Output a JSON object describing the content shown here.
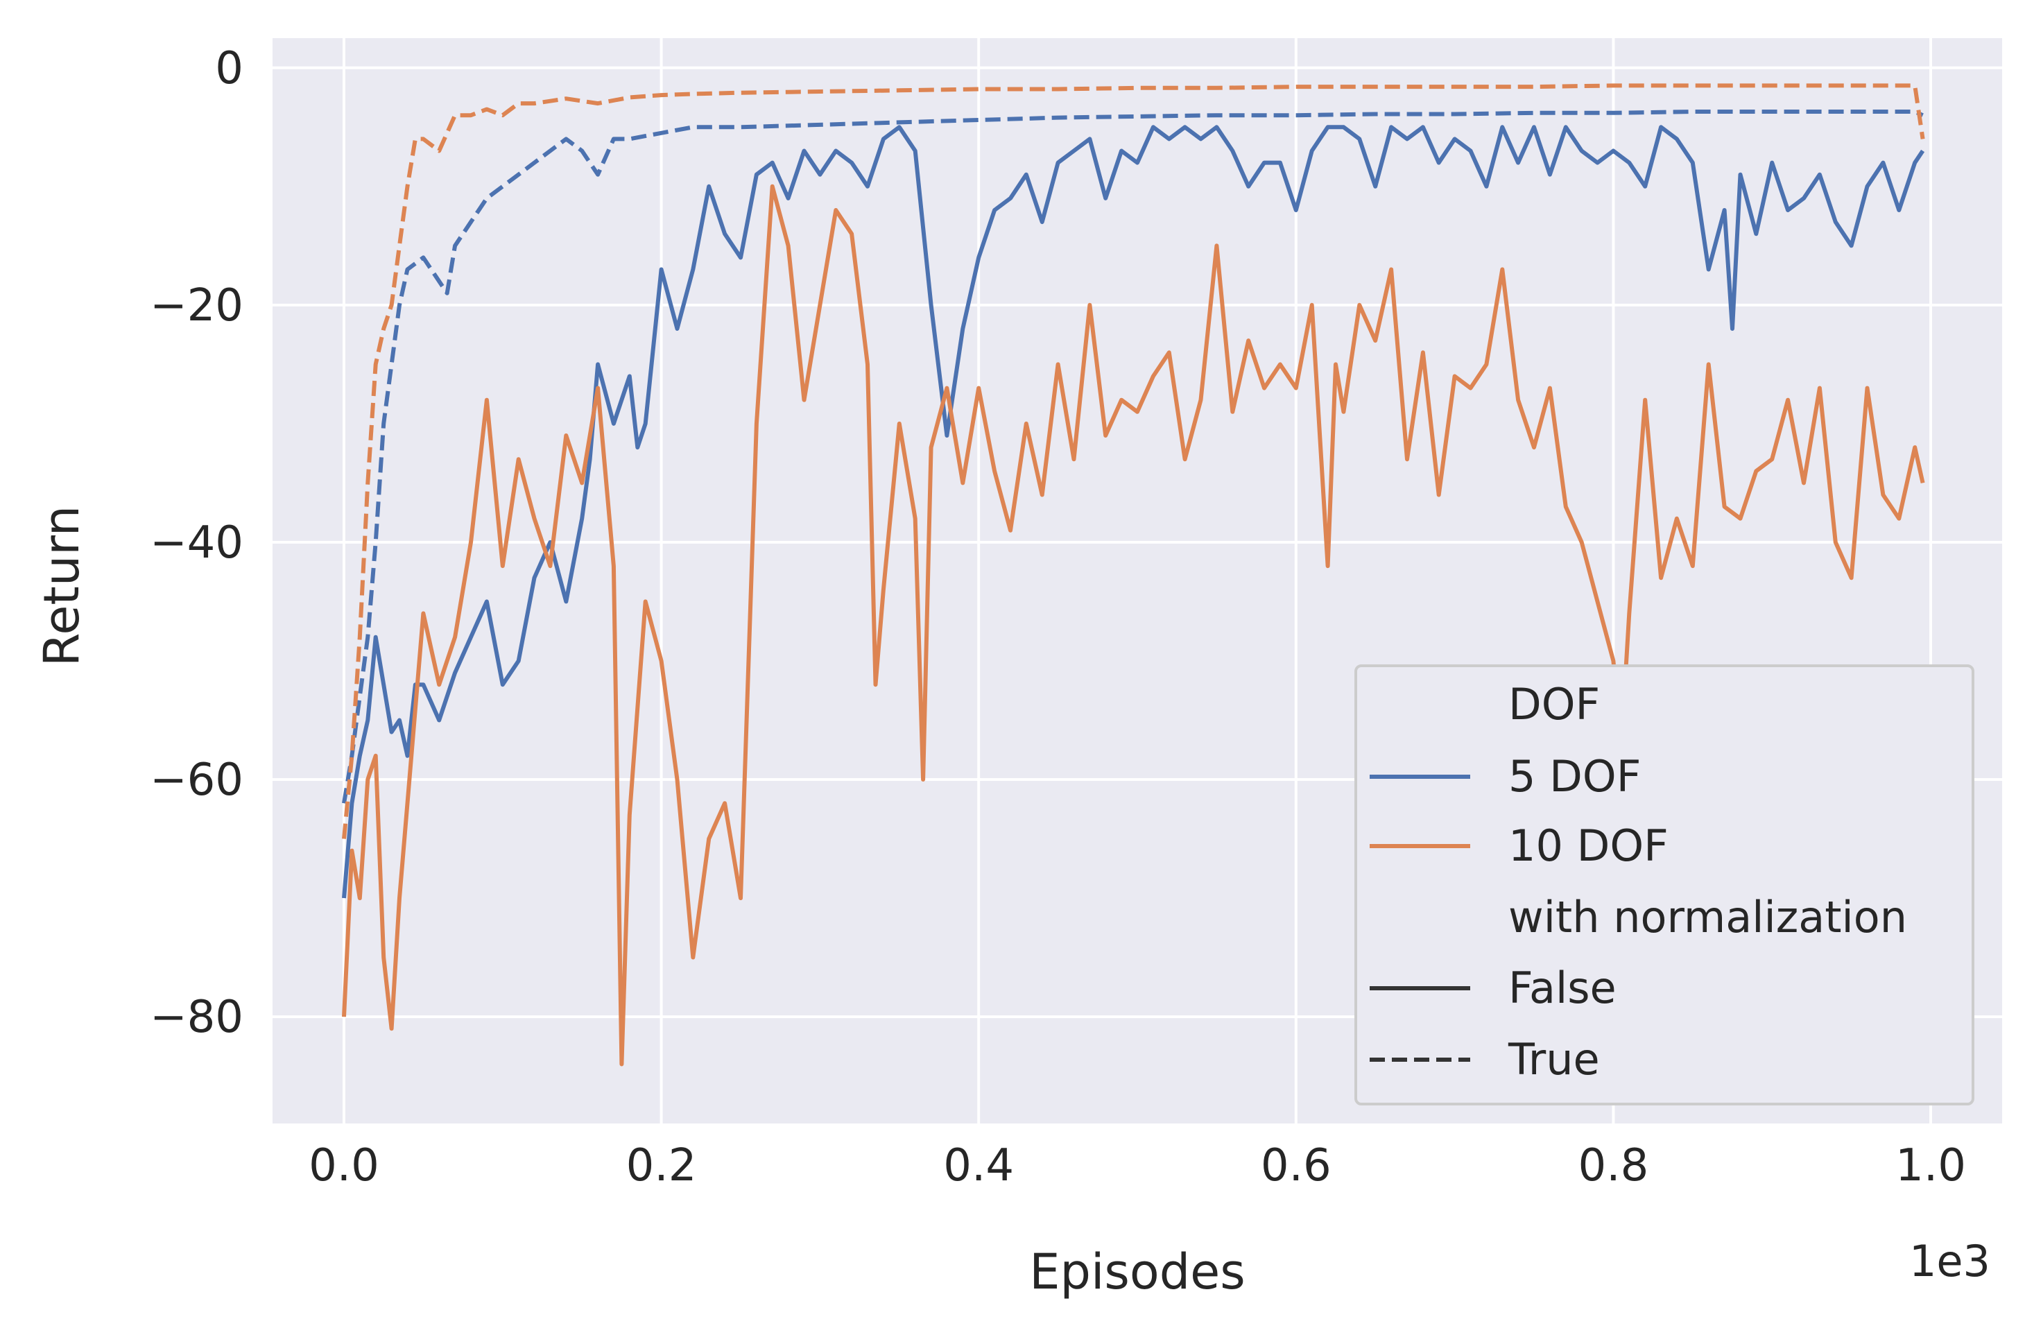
{
  "chart_data": {
    "type": "line",
    "xlabel": "Episodes",
    "ylabel": "Return",
    "x_offset_text": "1e3",
    "xlim": [
      -0.045,
      1.045
    ],
    "ylim": [
      -89,
      2.5
    ],
    "grid": true,
    "x_ticks": [
      0.0,
      0.2,
      0.4,
      0.6,
      0.8,
      1.0
    ],
    "x_tick_labels": [
      "0.0",
      "0.2",
      "0.4",
      "0.6",
      "0.8",
      "1.0"
    ],
    "y_ticks": [
      0,
      -20,
      -40,
      -60,
      -80
    ],
    "y_tick_labels": [
      "0",
      "−20",
      "−40",
      "−60",
      "−80"
    ],
    "legend": {
      "position": "lower-right",
      "hue_title": "DOF",
      "hue_entries": [
        {
          "label": "5 DOF",
          "color": "#4c72b0"
        },
        {
          "label": "10 DOF",
          "color": "#dd8452"
        }
      ],
      "style_title": "with normalization",
      "style_entries": [
        {
          "label": "False",
          "dash": "solid"
        },
        {
          "label": "True",
          "dash": "dashed"
        }
      ]
    },
    "series": [
      {
        "name": "5 DOF, False",
        "color": "#4c72b0",
        "dash": "solid",
        "x": [
          0,
          0.005,
          0.01,
          0.015,
          0.02,
          0.025,
          0.03,
          0.035,
          0.04,
          0.045,
          0.05,
          0.06,
          0.07,
          0.08,
          0.09,
          0.1,
          0.11,
          0.12,
          0.13,
          0.14,
          0.15,
          0.155,
          0.16,
          0.17,
          0.18,
          0.185,
          0.19,
          0.2,
          0.21,
          0.22,
          0.23,
          0.24,
          0.25,
          0.26,
          0.27,
          0.28,
          0.29,
          0.3,
          0.31,
          0.32,
          0.33,
          0.34,
          0.35,
          0.36,
          0.37,
          0.38,
          0.39,
          0.4,
          0.41,
          0.42,
          0.43,
          0.44,
          0.45,
          0.46,
          0.47,
          0.48,
          0.49,
          0.5,
          0.51,
          0.52,
          0.53,
          0.54,
          0.55,
          0.56,
          0.57,
          0.58,
          0.59,
          0.6,
          0.61,
          0.62,
          0.63,
          0.64,
          0.65,
          0.66,
          0.67,
          0.68,
          0.69,
          0.7,
          0.71,
          0.72,
          0.73,
          0.74,
          0.75,
          0.76,
          0.77,
          0.78,
          0.79,
          0.8,
          0.81,
          0.82,
          0.83,
          0.84,
          0.85,
          0.86,
          0.87,
          0.875,
          0.88,
          0.89,
          0.9,
          0.91,
          0.92,
          0.93,
          0.94,
          0.95,
          0.96,
          0.97,
          0.98,
          0.99,
          0.995
        ],
        "y": [
          -70,
          -62,
          -58,
          -55,
          -48,
          -52,
          -56,
          -55,
          -58,
          -52,
          -52,
          -55,
          -51,
          -48,
          -45,
          -52,
          -50,
          -43,
          -40,
          -45,
          -38,
          -33,
          -25,
          -30,
          -26,
          -32,
          -30,
          -17,
          -22,
          -17,
          -10,
          -14,
          -16,
          -9,
          -8,
          -11,
          -7,
          -9,
          -7,
          -8,
          -10,
          -6,
          -5,
          -7,
          -20,
          -31,
          -22,
          -16,
          -12,
          -11,
          -9,
          -13,
          -8,
          -7,
          -6,
          -11,
          -7,
          -8,
          -5,
          -6,
          -5,
          -6,
          -5,
          -7,
          -10,
          -8,
          -8,
          -12,
          -7,
          -5,
          -5,
          -6,
          -10,
          -5,
          -6,
          -5,
          -8,
          -6,
          -7,
          -10,
          -5,
          -8,
          -5,
          -9,
          -5,
          -7,
          -8,
          -7,
          -8,
          -10,
          -5,
          -6,
          -8,
          -17,
          -12,
          -22,
          -9,
          -14,
          -8,
          -12,
          -11,
          -9,
          -13,
          -15,
          -10,
          -8,
          -12,
          -8,
          -7
        ]
      },
      {
        "name": "10 DOF, False",
        "color": "#dd8452",
        "dash": "solid",
        "x": [
          0,
          0.005,
          0.01,
          0.015,
          0.02,
          0.025,
          0.03,
          0.035,
          0.04,
          0.05,
          0.06,
          0.07,
          0.08,
          0.09,
          0.1,
          0.11,
          0.12,
          0.13,
          0.14,
          0.15,
          0.16,
          0.17,
          0.175,
          0.18,
          0.19,
          0.2,
          0.21,
          0.22,
          0.23,
          0.24,
          0.25,
          0.26,
          0.27,
          0.28,
          0.29,
          0.3,
          0.31,
          0.32,
          0.33,
          0.335,
          0.34,
          0.35,
          0.36,
          0.365,
          0.37,
          0.38,
          0.39,
          0.4,
          0.41,
          0.42,
          0.43,
          0.44,
          0.45,
          0.46,
          0.47,
          0.48,
          0.49,
          0.5,
          0.51,
          0.52,
          0.53,
          0.54,
          0.55,
          0.56,
          0.57,
          0.58,
          0.59,
          0.6,
          0.61,
          0.62,
          0.625,
          0.63,
          0.64,
          0.65,
          0.66,
          0.67,
          0.68,
          0.69,
          0.7,
          0.71,
          0.72,
          0.73,
          0.74,
          0.75,
          0.76,
          0.77,
          0.78,
          0.79,
          0.8,
          0.805,
          0.81,
          0.82,
          0.83,
          0.84,
          0.85,
          0.86,
          0.87,
          0.88,
          0.89,
          0.9,
          0.91,
          0.92,
          0.93,
          0.94,
          0.95,
          0.96,
          0.97,
          0.98,
          0.99,
          0.995
        ],
        "y": [
          -80,
          -66,
          -70,
          -60,
          -58,
          -75,
          -81,
          -70,
          -62,
          -46,
          -52,
          -48,
          -40,
          -28,
          -42,
          -33,
          -38,
          -42,
          -31,
          -35,
          -27,
          -42,
          -84,
          -63,
          -45,
          -50,
          -60,
          -75,
          -65,
          -62,
          -70,
          -30,
          -10,
          -15,
          -28,
          -20,
          -12,
          -14,
          -25,
          -52,
          -44,
          -30,
          -38,
          -60,
          -32,
          -27,
          -35,
          -27,
          -34,
          -39,
          -30,
          -36,
          -25,
          -33,
          -20,
          -31,
          -28,
          -29,
          -26,
          -24,
          -33,
          -28,
          -15,
          -29,
          -23,
          -27,
          -25,
          -27,
          -20,
          -42,
          -25,
          -29,
          -20,
          -23,
          -17,
          -33,
          -24,
          -36,
          -26,
          -27,
          -25,
          -17,
          -28,
          -32,
          -27,
          -37,
          -40,
          -45,
          -50,
          -57,
          -46,
          -28,
          -43,
          -38,
          -42,
          -25,
          -37,
          -38,
          -34,
          -33,
          -28,
          -35,
          -27,
          -40,
          -43,
          -27,
          -36,
          -38,
          -32,
          -35
        ]
      },
      {
        "name": "5 DOF, True",
        "color": "#4c72b0",
        "dash": "dashed",
        "x": [
          0,
          0.005,
          0.01,
          0.015,
          0.02,
          0.025,
          0.03,
          0.035,
          0.04,
          0.05,
          0.06,
          0.065,
          0.07,
          0.08,
          0.09,
          0.1,
          0.11,
          0.12,
          0.13,
          0.14,
          0.15,
          0.16,
          0.17,
          0.18,
          0.2,
          0.22,
          0.25,
          0.3,
          0.35,
          0.4,
          0.45,
          0.5,
          0.55,
          0.6,
          0.65,
          0.7,
          0.75,
          0.8,
          0.85,
          0.9,
          0.95,
          0.99,
          0.995
        ],
        "y": [
          -62,
          -58,
          -53,
          -48,
          -40,
          -30,
          -25,
          -20,
          -17,
          -16,
          -18,
          -19,
          -15,
          -13,
          -11,
          -10,
          -9,
          -8,
          -7,
          -6,
          -7,
          -9,
          -6,
          -6,
          -5.5,
          -5,
          -5,
          -4.8,
          -4.6,
          -4.4,
          -4.2,
          -4.1,
          -4,
          -4,
          -3.9,
          -3.9,
          -3.8,
          -3.8,
          -3.7,
          -3.7,
          -3.7,
          -3.7,
          -4
        ]
      },
      {
        "name": "10 DOF, True",
        "color": "#dd8452",
        "dash": "dashed",
        "x": [
          0,
          0.005,
          0.01,
          0.015,
          0.02,
          0.025,
          0.03,
          0.035,
          0.04,
          0.045,
          0.05,
          0.06,
          0.07,
          0.08,
          0.09,
          0.1,
          0.11,
          0.12,
          0.13,
          0.14,
          0.16,
          0.18,
          0.2,
          0.22,
          0.25,
          0.3,
          0.35,
          0.4,
          0.45,
          0.5,
          0.55,
          0.6,
          0.65,
          0.7,
          0.75,
          0.8,
          0.85,
          0.9,
          0.95,
          0.99,
          0.995
        ],
        "y": [
          -65,
          -58,
          -48,
          -35,
          -25,
          -22,
          -20,
          -15,
          -10,
          -6,
          -6,
          -7,
          -4,
          -4,
          -3.5,
          -4,
          -3,
          -3,
          -2.8,
          -2.6,
          -3,
          -2.5,
          -2.3,
          -2.2,
          -2.1,
          -2,
          -1.9,
          -1.8,
          -1.8,
          -1.7,
          -1.7,
          -1.6,
          -1.6,
          -1.6,
          -1.6,
          -1.5,
          -1.5,
          -1.5,
          -1.5,
          -1.5,
          -6
        ]
      }
    ]
  }
}
